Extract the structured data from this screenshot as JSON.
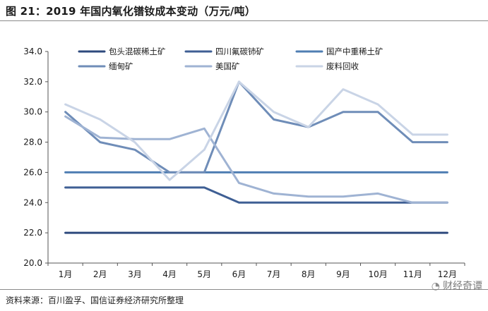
{
  "header": {
    "title": "图 21：2019 年国内氧化镨钕成本变动（万元/吨）"
  },
  "footer": {
    "source": "资料来源：百川盈孚、国信证券经济研究所整理",
    "watermark": "财经奇谭"
  },
  "chart_data": {
    "type": "line",
    "title": "2019 年国内氧化镨钕成本变动（万元/吨）",
    "xlabel": "",
    "ylabel": "",
    "ylim": [
      20.0,
      34.0
    ],
    "yticks": [
      "20.0",
      "22.0",
      "24.0",
      "26.0",
      "28.0",
      "30.0",
      "32.0",
      "34.0"
    ],
    "categories": [
      "1月",
      "2月",
      "3月",
      "4月",
      "5月",
      "6月",
      "7月",
      "8月",
      "9月",
      "10月",
      "11月",
      "12月"
    ],
    "grid": false,
    "legend_position": "top",
    "series": [
      {
        "name": "包头混碳稀土矿",
        "color": "#2e4a7d",
        "values": [
          22,
          22,
          22,
          22,
          22,
          22,
          22,
          22,
          22,
          22,
          22,
          22
        ]
      },
      {
        "name": "四川氟碳铈矿",
        "color": "#3f5f94",
        "values": [
          25,
          25,
          25,
          25,
          25,
          24,
          24,
          24,
          24,
          24,
          24,
          24
        ]
      },
      {
        "name": "国产中重稀土矿",
        "color": "#4f7eb3",
        "values": [
          26,
          26,
          26,
          26,
          26,
          26,
          26,
          26,
          26,
          26,
          26,
          26
        ]
      },
      {
        "name": "缅甸矿",
        "color": "#6f8db8",
        "values": [
          30,
          28,
          27.5,
          26,
          26,
          32,
          29.5,
          29,
          30,
          30,
          28,
          28
        ]
      },
      {
        "name": "美国矿",
        "color": "#9fb3d3",
        "values": [
          29.7,
          28.3,
          28.2,
          28.2,
          28.9,
          25.3,
          24.6,
          24.4,
          24.4,
          24.6,
          24,
          24
        ]
      },
      {
        "name": "废料回收",
        "color": "#c9d4e6",
        "values": [
          30.5,
          29.5,
          28,
          25.5,
          27.5,
          32,
          30,
          29,
          31.5,
          30.5,
          28.5,
          28.5
        ]
      }
    ]
  }
}
